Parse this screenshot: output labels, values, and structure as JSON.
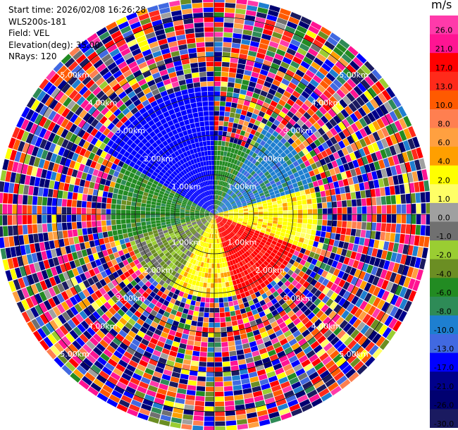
{
  "header": {
    "start_time": "Start time: 2026/02/08 16:26:28",
    "instrument": "WLS200s-181",
    "field": "Field: VEL",
    "elevation": "Elevation(deg): 35.00",
    "nrays": "NRays: 120"
  },
  "colorbar": {
    "unit": "m/s",
    "ticks": [
      "26.0",
      "21.0",
      "17.0",
      "13.0",
      "10.0",
      "8.0",
      "6.0",
      "4.0",
      "2.0",
      "1.0",
      "0.0",
      "-1.0",
      "-2.0",
      "-4.0",
      "-6.0",
      "-8.0",
      "-10.0",
      "-13.0",
      "-17.0",
      "-21.0",
      "-26.0",
      "-30.0"
    ],
    "colors": [
      "#ff3aaa",
      "#ff1493",
      "#ff0000",
      "#ff2a1a",
      "#ff5a00",
      "#ff7f50",
      "#ffa040",
      "#ff9f00",
      "#ffff00",
      "#ffff66",
      "#a0a0a0",
      "#707070",
      "#9acd32",
      "#6b8e23",
      "#228b22",
      "#2e8b57",
      "#1e7fd0",
      "#4169e1",
      "#0000ff",
      "#00008b",
      "#000070",
      "#1a1a60"
    ]
  },
  "chart_data": {
    "type": "heatmap",
    "title": "",
    "projection": "polar PPI",
    "range_rings_km": [
      1.0,
      2.0,
      3.0,
      4.0,
      5.0
    ],
    "ring_labels": [
      "1.00km",
      "2.00km",
      "3.00km",
      "4.00km",
      "5.00km"
    ],
    "nrays": 120,
    "max_range_km": 5.4,
    "vmin": -30.0,
    "vmax": 30.0,
    "sectors": [
      {
        "from_deg": 300,
        "to_deg": 360,
        "max_km": 3.2,
        "value": -15.0
      },
      {
        "from_deg": 0,
        "to_deg": 30,
        "max_km": 1.8,
        "value": -5.0
      },
      {
        "from_deg": 30,
        "to_deg": 75,
        "max_km": 2.6,
        "value": -9.0
      },
      {
        "from_deg": 75,
        "to_deg": 110,
        "max_km": 2.6,
        "value": 3.0
      },
      {
        "from_deg": 110,
        "to_deg": 165,
        "max_km": 2.2,
        "value": 18.0
      },
      {
        "from_deg": 165,
        "to_deg": 210,
        "max_km": 2.0,
        "value": 3.0
      },
      {
        "from_deg": 210,
        "to_deg": 255,
        "max_km": 2.2,
        "value": -1.5
      },
      {
        "from_deg": 255,
        "to_deg": 300,
        "max_km": 2.6,
        "value": -5.0
      }
    ],
    "beyond_range": "noise"
  }
}
